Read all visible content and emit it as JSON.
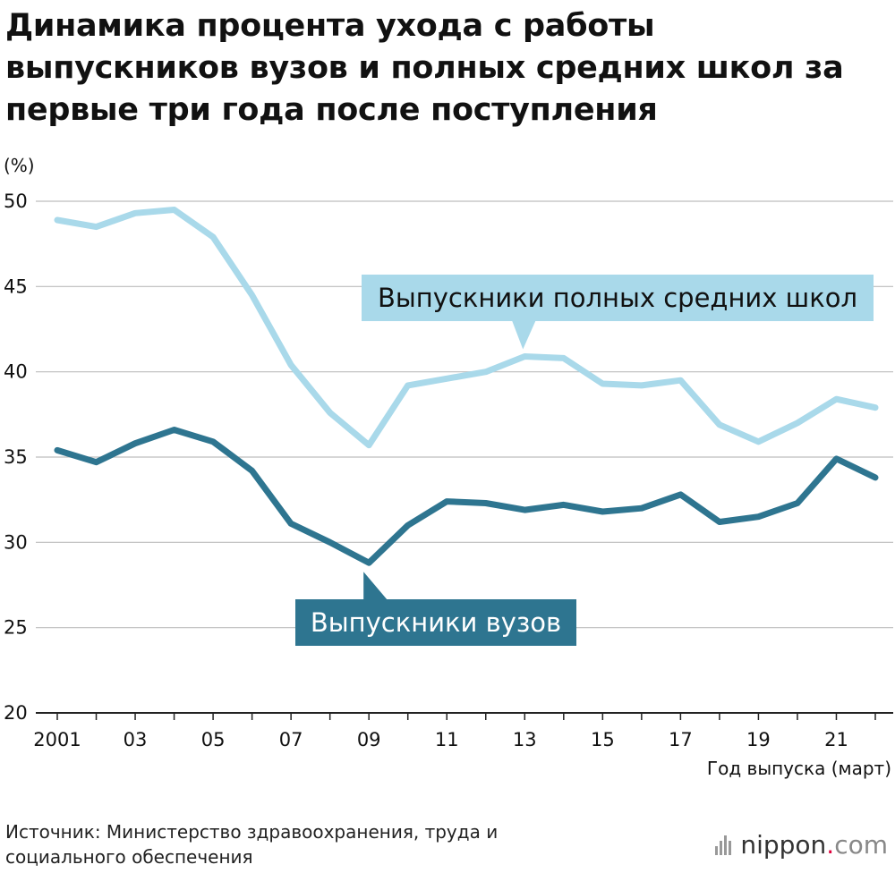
{
  "chart_data": {
    "type": "line",
    "title": "Динамика процента ухода с работы выпускников вузов и полных средних школ за первые три года после поступления",
    "ylabel": "(%)",
    "xlabel": "Год выпуска (март)",
    "ylim": [
      20,
      50
    ],
    "yticks": [
      "50",
      "45",
      "40",
      "35",
      "30",
      "25",
      "20"
    ],
    "ytick_values": [
      50,
      45,
      40,
      35,
      30,
      25,
      20
    ],
    "x": [
      2001,
      2002,
      2003,
      2004,
      2005,
      2006,
      2007,
      2008,
      2009,
      2010,
      2011,
      2012,
      2013,
      2014,
      2015,
      2016,
      2017,
      2018,
      2019,
      2020,
      2021,
      2022
    ],
    "xticks": [
      "2001",
      "03",
      "05",
      "07",
      "09",
      "11",
      "13",
      "15",
      "17",
      "19",
      "21"
    ],
    "xtick_values": [
      2001,
      2003,
      2005,
      2007,
      2009,
      2011,
      2013,
      2015,
      2017,
      2019,
      2021
    ],
    "grid": true,
    "series": [
      {
        "name": "Выпускники полных средних школ",
        "color": "#a9d9ea",
        "values": [
          48.9,
          48.5,
          49.3,
          49.5,
          47.9,
          44.5,
          40.4,
          37.6,
          35.7,
          39.2,
          39.6,
          40.0,
          40.9,
          40.8,
          39.3,
          39.2,
          39.5,
          36.9,
          35.9,
          37.0,
          38.4,
          37.9
        ]
      },
      {
        "name": "Выпускники вузов",
        "color": "#2e7590",
        "values": [
          35.4,
          34.7,
          35.8,
          36.6,
          35.9,
          34.2,
          31.1,
          30.0,
          28.8,
          31.0,
          32.4,
          32.3,
          31.9,
          32.2,
          31.8,
          32.0,
          32.8,
          31.2,
          31.5,
          32.3,
          34.9,
          33.8
        ]
      }
    ]
  },
  "source": "Источник: Министерство здравоохранения, труда и социального обеспечения",
  "brand": {
    "name": "nippon",
    "dot": ".",
    "suffix": "com"
  }
}
